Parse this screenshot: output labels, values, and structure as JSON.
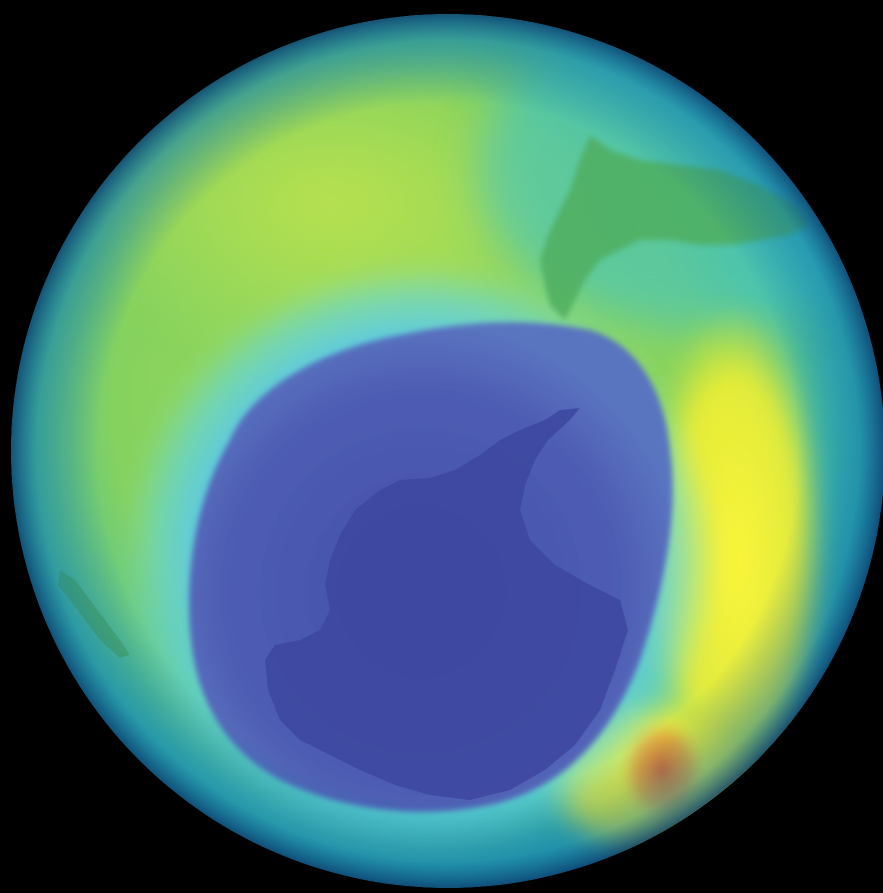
{
  "background_color": "#000000",
  "globe": {
    "subject": "ozone-concentration-globe-southern-hemisphere",
    "color_scale": [
      "#3a4fa8",
      "#4c62b4",
      "#57c8e8",
      "#2fb0c8",
      "#6fcf7a",
      "#b7e04a",
      "#f2ef2a",
      "#f7a534",
      "#e26a2c"
    ],
    "regions": [
      {
        "name": "ozone-hole",
        "color": "#4a58ad"
      },
      {
        "name": "antarctica-landmass",
        "color": "#3f49a2"
      },
      {
        "name": "hole-boundary-band",
        "color": "#5fd0ee"
      },
      {
        "name": "mid-latitude-band",
        "color": "#8fd65c"
      },
      {
        "name": "high-ozone-band",
        "color": "#f4f02e"
      },
      {
        "name": "peak-ozone-spot",
        "color": "#e8792c"
      },
      {
        "name": "south-america-landmass",
        "color": "#55b860"
      },
      {
        "name": "outer-rim",
        "color": "#25a7c0"
      }
    ]
  }
}
